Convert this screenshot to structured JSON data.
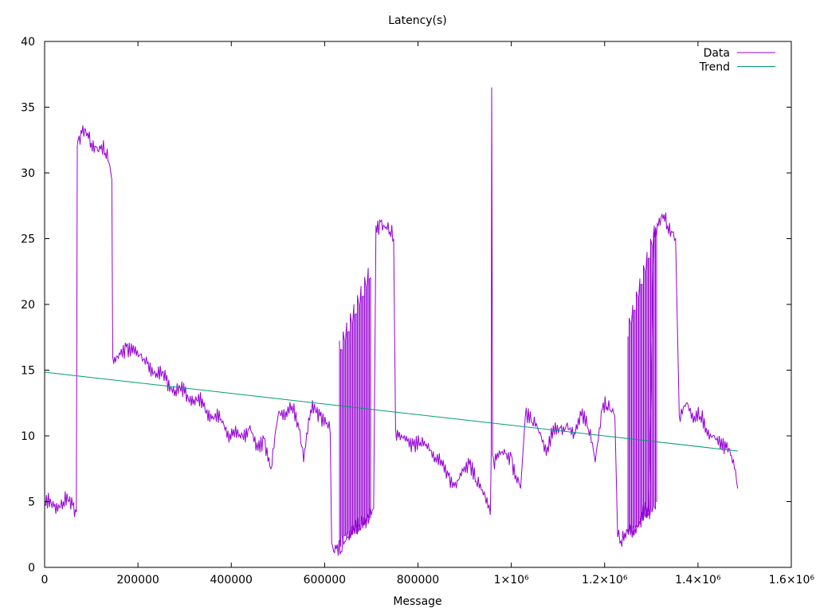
{
  "chart_data": {
    "type": "line",
    "title": "Latency(s)",
    "xlabel": "Message",
    "ylabel": "",
    "xlim": [
      0,
      1600000
    ],
    "ylim": [
      0,
      40
    ],
    "x_ticks": [
      {
        "value": 0,
        "label": "0"
      },
      {
        "value": 200000,
        "label": "200000"
      },
      {
        "value": 400000,
        "label": "400000"
      },
      {
        "value": 600000,
        "label": "600000"
      },
      {
        "value": 800000,
        "label": "800000"
      },
      {
        "value": 1000000,
        "label": "1×10⁶"
      },
      {
        "value": 1200000,
        "label": "1.2×10⁶"
      },
      {
        "value": 1400000,
        "label": "1.4×10⁶"
      },
      {
        "value": 1600000,
        "label": "1.6×10⁶"
      }
    ],
    "y_ticks": [
      0,
      5,
      10,
      15,
      20,
      25,
      30,
      35,
      40
    ],
    "grid": false,
    "legend_position": "top-right",
    "series": [
      {
        "name": "Data",
        "color": "#9400d3",
        "x": [
          0,
          20000,
          40000,
          60000,
          68000,
          70000,
          72000,
          80000,
          90000,
          100000,
          110000,
          120000,
          130000,
          140000,
          144000,
          146000,
          150000,
          160000,
          175000,
          190000,
          205000,
          220000,
          240000,
          260000,
          280000,
          300000,
          320000,
          340000,
          360000,
          380000,
          395000,
          405000,
          420000,
          440000,
          455000,
          470000,
          485000,
          500000,
          515000,
          530000,
          545000,
          555000,
          570000,
          590000,
          605000,
          612000,
          615000,
          625000,
          635000,
          645000,
          660000,
          675000,
          690000,
          700000,
          705000,
          710000,
          720000,
          730000,
          740000,
          748000,
          752000,
          760000,
          775000,
          790000,
          805000,
          820000,
          835000,
          850000,
          865000,
          880000,
          895000,
          910000,
          925000,
          940000,
          950000,
          955000,
          957000,
          958000,
          960000,
          962000,
          970000,
          985000,
          1000000,
          1010000,
          1020000,
          1030000,
          1045000,
          1060000,
          1075000,
          1090000,
          1105000,
          1120000,
          1135000,
          1150000,
          1165000,
          1180000,
          1195000,
          1205000,
          1215000,
          1222000,
          1228000,
          1235000,
          1245000,
          1255000,
          1265000,
          1275000,
          1285000,
          1295000,
          1305000,
          1315000,
          1325000,
          1335000,
          1345000,
          1352000,
          1360000,
          1375000,
          1390000,
          1405000,
          1420000,
          1435000,
          1450000,
          1460000,
          1470000,
          1478000,
          1485000
        ],
        "y": [
          4.8,
          4.6,
          5.0,
          4.7,
          4.2,
          32,
          32.5,
          33,
          32.8,
          32.3,
          32,
          31.8,
          31.5,
          30.5,
          29.5,
          16,
          16,
          16.3,
          16.8,
          16.9,
          16.2,
          15.5,
          14.8,
          14.2,
          13.5,
          13.2,
          12.8,
          12.2,
          11.5,
          11.0,
          9.5,
          10.5,
          9.8,
          10.8,
          9.5,
          9.8,
          7.5,
          11.5,
          11.2,
          12.3,
          10.5,
          8.0,
          12.0,
          11.5,
          11.0,
          10.2,
          1.8,
          1.4,
          1.2,
          2.0,
          2.5,
          3.0,
          3.5,
          4.0,
          4.5,
          26,
          26.3,
          25.8,
          25.5,
          25.0,
          10.5,
          10.3,
          10.0,
          9.2,
          9.5,
          9.0,
          8.0,
          8.2,
          7.0,
          6.5,
          7.5,
          7.8,
          6.5,
          5.5,
          4.5,
          4.0,
          8.5,
          36.5,
          8.5,
          8.2,
          8.7,
          9.0,
          8.5,
          7.0,
          6.0,
          11.5,
          11.0,
          10.2,
          8.5,
          10.8,
          10.6,
          11.0,
          10.2,
          11.5,
          10.5,
          8.0,
          12.0,
          12.2,
          11.8,
          11.5,
          2.3,
          2.0,
          2.2,
          2.8,
          3.0,
          3.5,
          4.0,
          4.0,
          25.5,
          26.0,
          26.5,
          26.0,
          25.5,
          25.0,
          11.5,
          12.5,
          11.0,
          11.5,
          10.0,
          10.0,
          9.8,
          9.0,
          8.5,
          7.5,
          6.0
        ],
        "band": [
          {
            "x": [
              632000,
              700000
            ],
            "low": [
              1.5,
              3.2
            ],
            "high": [
              17.5,
              23.5
            ]
          },
          {
            "x": [
              1250000,
              1312000
            ],
            "low": [
              2.0,
              4.2
            ],
            "high": [
              19.0,
              27.0
            ]
          }
        ]
      },
      {
        "name": "Trend",
        "color": "#009e73",
        "x": [
          0,
          1485000
        ],
        "y": [
          14.85,
          8.85
        ]
      }
    ]
  }
}
